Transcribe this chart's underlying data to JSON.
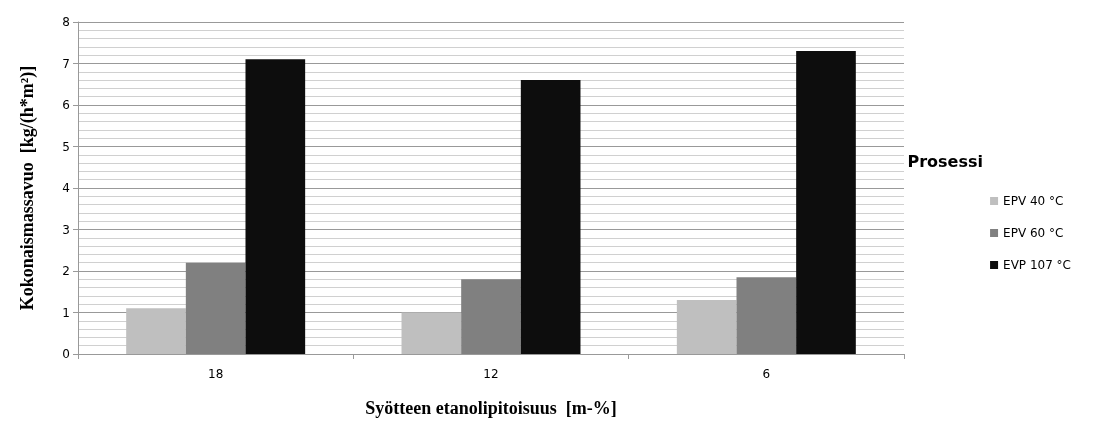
{
  "chart_data": {
    "type": "bar",
    "xlabel": "Syötteen etanolipitoisuus  [m-%]",
    "ylabel": "Kokonaismassavuo  [kg/(h*m²)]",
    "legend_title": "Prosessi",
    "categories": [
      "18",
      "12",
      "6"
    ],
    "series": [
      {
        "name": "EPV 40 °C",
        "color": "#bfbfbf",
        "values": [
          1.1,
          1.0,
          1.3
        ]
      },
      {
        "name": "EPV 60 °C",
        "color": "#808080",
        "values": [
          2.2,
          1.8,
          1.85
        ]
      },
      {
        "name": "EVP 107 °C",
        "color": "#0d0d0d",
        "values": [
          7.1,
          6.6,
          7.3
        ]
      }
    ],
    "ylim": [
      0,
      8
    ],
    "yticks": [
      0,
      1,
      2,
      3,
      4,
      5,
      6,
      7,
      8
    ],
    "grid": "y",
    "legend": "right"
  }
}
